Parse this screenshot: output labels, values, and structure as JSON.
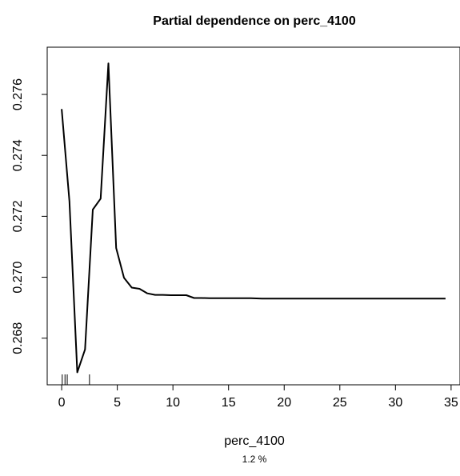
{
  "chart_data": {
    "type": "line",
    "title": "Partial dependence on perc_4100",
    "xlabel": "perc_4100",
    "ylabel": "",
    "subnote": "1.2 %",
    "xlim": [
      -1.3,
      35.8
    ],
    "ylim": [
      0.26647,
      0.27755
    ],
    "x_ticks": [
      0,
      5,
      10,
      15,
      20,
      25,
      30,
      35
    ],
    "y_ticks": [
      0.268,
      0.27,
      0.272,
      0.274,
      0.276
    ],
    "y_tick_labels": [
      "0.268",
      "0.270",
      "0.272",
      "0.274",
      "0.276"
    ],
    "x": [
      0,
      0.7,
      1.4,
      2.1,
      2.8,
      3.5,
      4.2,
      4.9,
      5.6,
      6.3,
      7.0,
      7.7,
      8.4,
      9.1,
      9.8,
      10.5,
      11.2,
      11.9,
      12.6,
      13.3,
      14.0,
      15.0,
      16.0,
      17.0,
      18.0,
      20.0,
      25.0,
      30.0,
      34.5
    ],
    "y": [
      0.27552,
      0.27249,
      0.26688,
      0.26763,
      0.27222,
      0.27258,
      0.27702,
      0.27096,
      0.26998,
      0.26966,
      0.26962,
      0.26947,
      0.26942,
      0.26942,
      0.26941,
      0.26941,
      0.26941,
      0.26932,
      0.26932,
      0.26931,
      0.26931,
      0.26931,
      0.26931,
      0.26931,
      0.2693,
      0.2693,
      0.2693,
      0.2693,
      0.2693
    ],
    "rug": [
      0.05,
      0.3,
      0.5,
      2.5
    ]
  }
}
